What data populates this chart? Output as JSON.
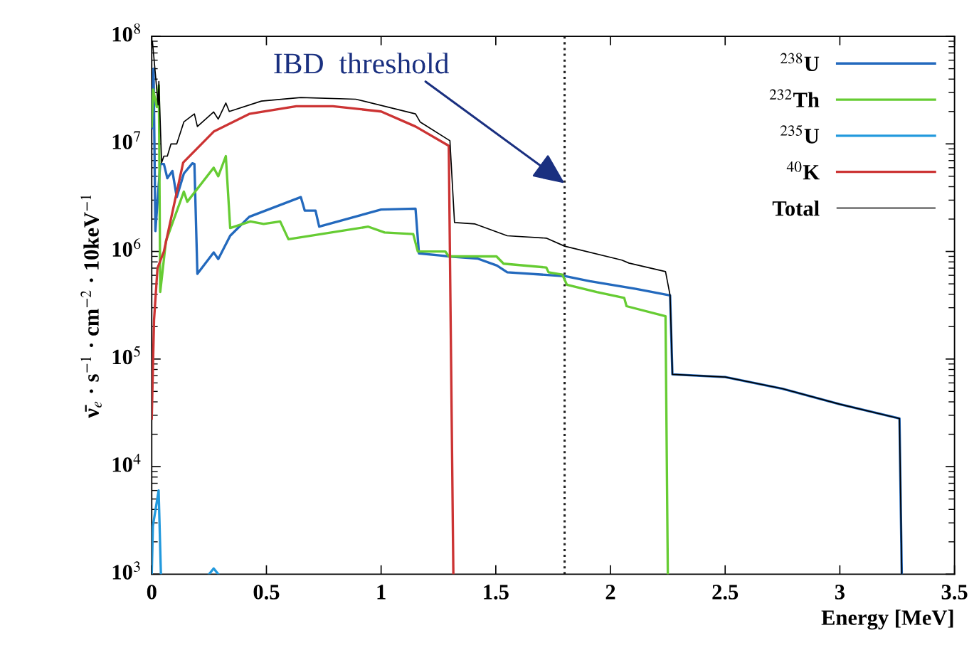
{
  "chart_data": {
    "type": "line",
    "xlabel": "Energy [MeV]",
    "ylabel": "ν̄$_{e}$ · s$^{−1}$ · cm$^{−2}$ · 10keV$^{−1}$",
    "log": "y",
    "xlim": [
      0,
      3.5
    ],
    "ylim": [
      1000,
      100000000
    ],
    "xticks": [
      0,
      0.5,
      1,
      1.5,
      2,
      2.5,
      3,
      3.5
    ],
    "yticks": [
      {
        "value": 1000,
        "label": "10$^{3}$"
      },
      {
        "value": 10000,
        "label": "10$^{4}$"
      },
      {
        "value": 100000,
        "label": "10$^{5}$"
      },
      {
        "value": 1000000,
        "label": "10$^{6}$"
      },
      {
        "value": 10000000,
        "label": "10$^{7}$"
      },
      {
        "value": 100000000,
        "label": "10$^{8}$"
      }
    ],
    "grid": false,
    "legend": "top right",
    "marker": "none",
    "line_style": "solid",
    "ref_lines": [
      {
        "axis": "x",
        "value": 1.8,
        "label": null,
        "color": "#222222",
        "line_style": "dotted"
      }
    ],
    "annotations": [
      {
        "text": "IBD  threshold",
        "x": 1.8,
        "y": 4300000
      }
    ],
    "series": [
      {
        "name": "$^{238}$U",
        "color": "#2369bd",
        "x": [
          0,
          0.008,
          0.016,
          0.037,
          0.053,
          0.068,
          0.09,
          0.109,
          0.14,
          0.177,
          0.186,
          0.199,
          0.27,
          0.29,
          0.342,
          0.425,
          0.65,
          0.667,
          0.714,
          0.73,
          1.0,
          1.15,
          1.165,
          1.255,
          1.295,
          1.42,
          1.505,
          1.55,
          1.8,
          1.91,
          2.11,
          2.26,
          2.27,
          2.5,
          2.75,
          3.0,
          3.26,
          3.27
        ],
        "values": [
          14000000,
          50000000,
          1550000,
          6500000,
          6500000,
          4800000,
          5600000,
          3200000,
          5300000,
          6600000,
          6500000,
          620000,
          980000,
          850000,
          1400000,
          2100000,
          3200000,
          2400000,
          2400000,
          1700000,
          2450000,
          2500000,
          960000,
          920000,
          900000,
          860000,
          740000,
          640000,
          590000,
          530000,
          450000,
          390000,
          72000,
          68000,
          53000,
          38000,
          28000,
          1000
        ]
      },
      {
        "name": "$^{232}$Th",
        "color": "#66cc33",
        "x": [
          0,
          0.006,
          0.022,
          0.031,
          0.037,
          0.062,
          0.14,
          0.155,
          0.27,
          0.29,
          0.323,
          0.342,
          0.43,
          0.488,
          0.56,
          0.596,
          0.944,
          1.015,
          1.14,
          1.16,
          1.28,
          1.295,
          1.503,
          1.534,
          1.72,
          1.73,
          1.79,
          1.81,
          1.94,
          2.06,
          2.07,
          2.24,
          2.25
        ],
        "values": [
          14500000,
          32000000,
          22000000,
          35000000,
          420000,
          1250000,
          3600000,
          2900000,
          6000000,
          5000000,
          7700000,
          1650000,
          1900000,
          1800000,
          1900000,
          1300000,
          1700000,
          1500000,
          1450000,
          1000000,
          1000000,
          900000,
          900000,
          770000,
          710000,
          640000,
          610000,
          490000,
          420000,
          370000,
          310000,
          250000,
          1000
        ]
      },
      {
        "name": "$^{235}$U",
        "color": "#2299dd",
        "x": [
          0,
          0.005,
          0.03,
          0.04,
          0.15,
          0.25,
          0.27,
          0.29
        ],
        "values": [
          1000,
          2800,
          6000,
          1000,
          null,
          1000,
          1130,
          1000
        ]
      },
      {
        "name": "$^{40}$K",
        "color": "#cc3333",
        "x": [
          0,
          0.01,
          0.025,
          0.053,
          0.137,
          0.27,
          0.425,
          0.63,
          0.79,
          1.0,
          1.15,
          1.295,
          1.315
        ],
        "values": [
          28000,
          230000,
          700000,
          1000000,
          6700000,
          13000000,
          19000000,
          22400000,
          22400000,
          20000000,
          14500000,
          9600000,
          1000
        ]
      },
      {
        "name": "Total",
        "color": "#000000",
        "x": [
          0.003,
          0.028,
          0.031,
          0.043,
          0.053,
          0.068,
          0.084,
          0.109,
          0.14,
          0.186,
          0.199,
          0.27,
          0.29,
          0.323,
          0.338,
          0.478,
          0.65,
          0.89,
          1.15,
          1.17,
          1.3,
          1.32,
          1.41,
          1.55,
          1.72,
          1.8,
          2.05,
          2.08,
          2.24,
          2.26,
          2.27,
          2.5,
          2.75,
          3.0,
          3.26,
          3.27
        ],
        "values": [
          90000000,
          23000000,
          38000000,
          6700000,
          7700000,
          7700000,
          10000000,
          10000000,
          16000000,
          19000000,
          14500000,
          19800000,
          17000000,
          24000000,
          20000000,
          25000000,
          27000000,
          26000000,
          19000000,
          16000000,
          10700000,
          1860000,
          1800000,
          1400000,
          1330000,
          1120000,
          830000,
          780000,
          650000,
          390000,
          72000,
          68000,
          53000,
          38000,
          28000,
          1000
        ]
      }
    ]
  }
}
